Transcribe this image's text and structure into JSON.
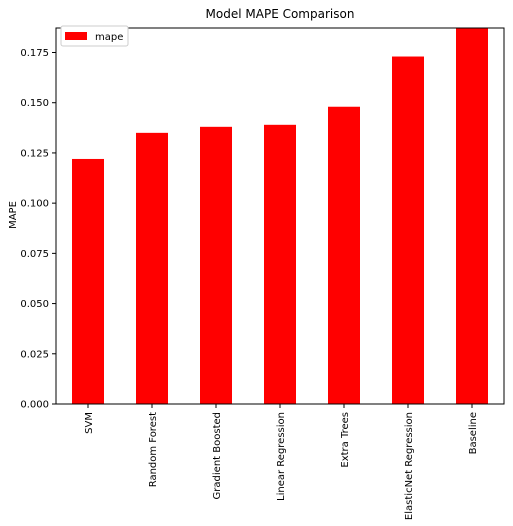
{
  "chart_data": {
    "type": "bar",
    "title": "Model MAPE Comparison",
    "xlabel": "",
    "ylabel": "MAPE",
    "categories": [
      "SVM",
      "Random Forest",
      "Gradient Boosted",
      "Linear Regression",
      "Extra Trees",
      "ElasticNet Regression",
      "Baseline"
    ],
    "series": [
      {
        "name": "mape",
        "values": [
          0.122,
          0.135,
          0.138,
          0.139,
          0.148,
          0.173,
          0.187
        ],
        "color": "#ff0000"
      }
    ],
    "ylim": [
      0,
      0.1872
    ],
    "yticks": [
      "0.000",
      "0.025",
      "0.050",
      "0.075",
      "0.100",
      "0.125",
      "0.150",
      "0.175"
    ],
    "ytick_values": [
      0,
      0.025,
      0.05,
      0.075,
      0.1,
      0.125,
      0.15,
      0.175
    ],
    "grid": false,
    "legend_position": "top-left"
  }
}
